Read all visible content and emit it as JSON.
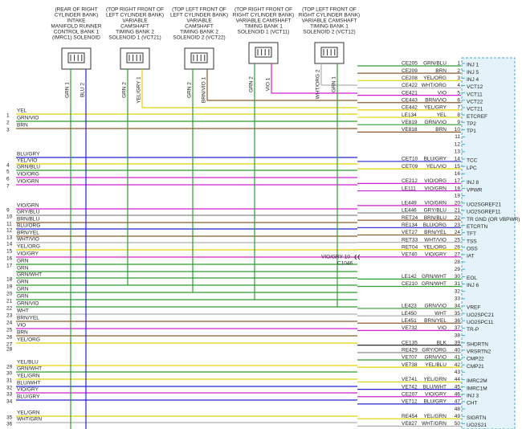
{
  "connectors": [
    {
      "label": [
        "(REAR OF RIGHT",
        "CYLINDER BANK)",
        "INTAKE",
        "MANIFOLD RUNNER",
        "CONTROL BANK 1",
        "(IMRC1) SOLENOID"
      ],
      "pins": [
        "GRN 1",
        "BLU 2"
      ]
    },
    {
      "label": [
        "(TOP RIGHT FRONT OF",
        "LEFT CYLINDER BANK)",
        "VARIABLE",
        "CAMSHAFT",
        "TIMING BANK 2",
        "SOLENOID 1 (VCT21)"
      ],
      "pins": [
        "GRN 2",
        "YEL/GRY 1"
      ]
    },
    {
      "label": [
        "(TOP LEFT FRONT OF",
        "LEFT CYLINDER BANK)",
        "VARIABLE",
        "CAMSHAFT",
        "TIMING BANK 2",
        "SOLENOID 2 (VCT22)"
      ],
      "pins": [
        "GRN 2",
        "BRN/VIO 1"
      ]
    },
    {
      "label": [
        "(TOP RIGHT FRONT OF",
        "RIGHT CYLINDER BANK)",
        "VARIABLE CAMSHAFT",
        "TIMING BANK 1",
        "SOLENOID 1 (VCT11)"
      ],
      "pins": [
        "GRN 2",
        "VIO 1"
      ]
    },
    {
      "label": [
        "(TOP LEFT FRONT OF",
        "RIGHT CYLINDER BANK)",
        "VARIABLE CAMSHAFT",
        "TIMING BANK 1",
        "SOLENOID 2 (VCT12)"
      ],
      "pins": [
        "WHT/ORG 2",
        "GRN 1"
      ]
    }
  ],
  "left_wires": [
    {
      "num": "1",
      "color": "YEL"
    },
    {
      "num": "2",
      "color": "GRN/VIO"
    },
    {
      "num": "3",
      "color": "BRN"
    },
    {
      "num": null,
      "color": "BLU/GRY"
    },
    {
      "num": "4",
      "color": "YEL/VIO"
    },
    {
      "num": "5",
      "color": "GRN/BLU"
    },
    {
      "num": "6",
      "color": "VIO/ORG"
    },
    {
      "num": "7",
      "color": "VIO/GRN"
    },
    {
      "num": "9",
      "color": "VIO/GRN"
    },
    {
      "num": "10",
      "color": "GRY/BLU"
    },
    {
      "num": "11",
      "color": "BRN/BLU"
    },
    {
      "num": "12",
      "color": "BLU/ORG"
    },
    {
      "num": "13",
      "color": "BRN/YEL"
    },
    {
      "num": "14",
      "color": "WHT/VIO"
    },
    {
      "num": "15",
      "color": "YEL/ORG"
    },
    {
      "num": "16",
      "color": "VIO/GRY"
    },
    {
      "num": "17",
      "color": "GRN"
    },
    {
      "num": null,
      "color": "GRN"
    },
    {
      "num": "18",
      "color": "GRN/WHT"
    },
    {
      "num": "19",
      "color": "GRN"
    },
    {
      "num": "20",
      "color": "GRN"
    },
    {
      "num": "21",
      "color": "GRN"
    },
    {
      "num": "22",
      "color": "GRN/VIO"
    },
    {
      "num": "23",
      "color": "WHT"
    },
    {
      "num": "24",
      "color": "BRN/YEL"
    },
    {
      "num": "25",
      "color": "VIO"
    },
    {
      "num": "26",
      "color": "BRN"
    },
    {
      "num": "27",
      "color": "YEL/ORG"
    },
    {
      "num": "28",
      "color": null
    },
    {
      "num": "29",
      "color": "YEL/BLU"
    },
    {
      "num": "30",
      "color": "GRN/WHT"
    },
    {
      "num": "31",
      "color": "YEL/GRN"
    },
    {
      "num": "32",
      "color": "BLU/WHT"
    },
    {
      "num": "33",
      "color": "VIO/GRY"
    },
    {
      "num": "34",
      "color": "BLU/GRY"
    },
    {
      "num": "35",
      "color": "YEL/GRN"
    },
    {
      "num": "36",
      "color": "WHT/GRN"
    }
  ],
  "pins": [
    {
      "pin": "1",
      "circuit": "CE205",
      "color": "GRN/BLU",
      "name": "INJ 1"
    },
    {
      "pin": "2",
      "circuit": "CE209",
      "color": "BRN",
      "name": "INJ 5"
    },
    {
      "pin": "3",
      "circuit": "CE208",
      "color": "YEL/ORG",
      "name": "INJ 4"
    },
    {
      "pin": "4",
      "circuit": "CE422",
      "color": "WHT/ORG",
      "name": "VCT12"
    },
    {
      "pin": "5",
      "circuit": "CE421",
      "color": "VIO",
      "name": "VCT11"
    },
    {
      "pin": "6",
      "circuit": "CE443",
      "color": "BRN/VIO",
      "name": "VCT22"
    },
    {
      "pin": "7",
      "circuit": "CE442",
      "color": "YEL/GRY",
      "name": "VCT21"
    },
    {
      "pin": "8",
      "circuit": "LE134",
      "color": "YEL",
      "name": "ETCREF"
    },
    {
      "pin": "9",
      "circuit": "VE819",
      "color": "GRN/VIO",
      "name": "TP2"
    },
    {
      "pin": "10",
      "circuit": "VE818",
      "color": "BRN",
      "name": "TP1"
    },
    {
      "pin": "11"
    },
    {
      "pin": "12"
    },
    {
      "pin": "13"
    },
    {
      "pin": "14",
      "circuit": "CET10",
      "color": "BLU/GRY",
      "name": "TCC"
    },
    {
      "pin": "15",
      "circuit": "CET09",
      "color": "YEL/VIO",
      "name": "LPC"
    },
    {
      "pin": "16"
    },
    {
      "pin": "17",
      "circuit": "CE212",
      "color": "VIO/ORG",
      "name": "INJ 8"
    },
    {
      "pin": "18",
      "circuit": "LE111",
      "color": "VIO/GRN",
      "name": "VPWR"
    },
    {
      "pin": "19"
    },
    {
      "pin": "20",
      "circuit": "LE449",
      "color": "VIO/GRN",
      "name": "UO2SGREF21"
    },
    {
      "pin": "21",
      "circuit": "LE446",
      "color": "GRY/BLU",
      "name": "UO2SGREF11"
    },
    {
      "pin": "22",
      "circuit": "RET24",
      "color": "BRN/BLU",
      "name": "TR GND (OR VBPWR)"
    },
    {
      "pin": "23",
      "circuit": "RE134",
      "color": "BLU/ORG",
      "name": "ETCRTN"
    },
    {
      "pin": "24",
      "circuit": "VET27",
      "color": "BRN/YEL",
      "name": "TFT"
    },
    {
      "pin": "25",
      "circuit": "RET33",
      "color": "WHT/VIO",
      "name": "TSS"
    },
    {
      "pin": "26",
      "circuit": "RET04",
      "color": "YEL/ORG",
      "name": "OSS"
    },
    {
      "pin": "27",
      "circuit": "VE740",
      "color": "VIO/GRY",
      "name": "IAT"
    },
    {
      "pin": "28"
    },
    {
      "pin": "29"
    },
    {
      "pin": "30",
      "circuit": "LE142",
      "color": "GRN/WHT",
      "name": "EOL"
    },
    {
      "pin": "31",
      "circuit": "CE210",
      "color": "GRN/WHT",
      "name": "INJ 6"
    },
    {
      "pin": "32"
    },
    {
      "pin": "33"
    },
    {
      "pin": "34",
      "circuit": "LE423",
      "color": "GRN/VIO",
      "name": "VREF"
    },
    {
      "pin": "35",
      "circuit": "LE450",
      "color": "WHT",
      "name": "UO2SPC21"
    },
    {
      "pin": "36",
      "circuit": "LE451",
      "color": "BRN/YEL",
      "name": "UO2SPC11"
    },
    {
      "pin": "37",
      "circuit": "VE732",
      "color": "VIO",
      "name": "TR-P"
    },
    {
      "pin": "38"
    },
    {
      "pin": "39",
      "circuit": "CE135",
      "color": "BLK",
      "name": "SHDRTN"
    },
    {
      "pin": "40",
      "circuit": "RE429",
      "color": "GRY/ORG",
      "name": "VRSRTN2"
    },
    {
      "pin": "41",
      "circuit": "VE707",
      "color": "GRN/VIO",
      "name": "CMP22"
    },
    {
      "pin": "42",
      "circuit": "VE738",
      "color": "YEL/BLU",
      "name": "CMP21"
    },
    {
      "pin": "43"
    },
    {
      "pin": "44",
      "circuit": "VE741",
      "color": "YEL/GRN",
      "name": "IMRC2M"
    },
    {
      "pin": "45",
      "circuit": "VE742",
      "color": "BLU/WHT",
      "name": "IMRC1M"
    },
    {
      "pin": "46",
      "circuit": "CE207",
      "color": "VIO/GRY",
      "name": "INJ 3"
    },
    {
      "pin": "47",
      "circuit": "VE712",
      "color": "BLU/GRY",
      "name": "CHT"
    },
    {
      "pin": "48"
    },
    {
      "pin": "49",
      "circuit": "RE454",
      "color": "YEL/GRN",
      "name": "SIGRTN"
    },
    {
      "pin": "50",
      "circuit": "VE827",
      "color": "WHT/GRN",
      "name": "UO2S21"
    }
  ],
  "splice": {
    "label": "VIO/GRY 10",
    "connector": "C1046"
  }
}
